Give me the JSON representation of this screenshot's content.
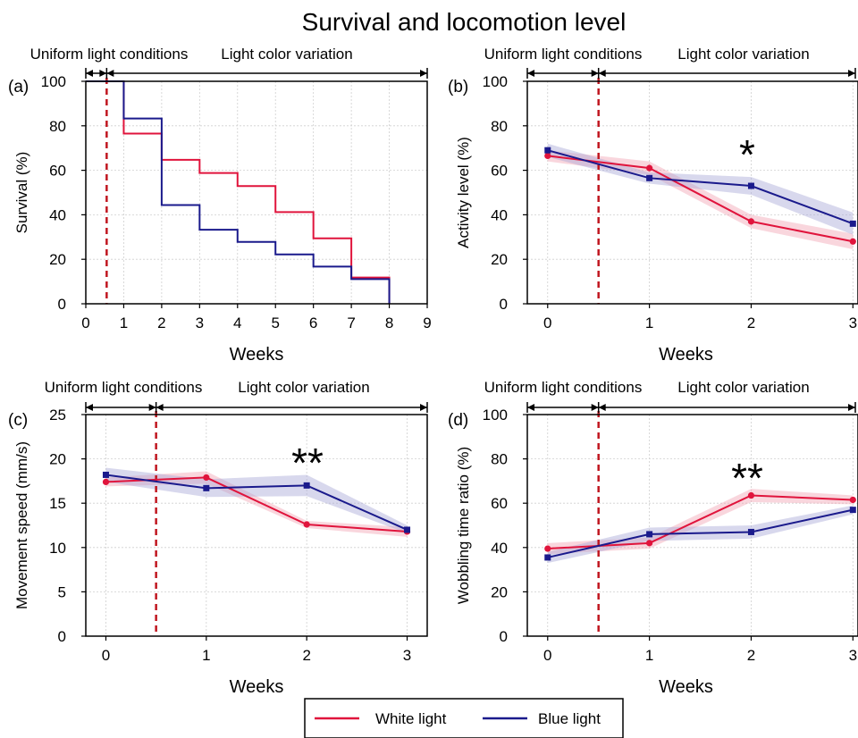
{
  "title": "Survival and locomotion level",
  "colors": {
    "white_light": "#e0143c",
    "blue_light": "#1a1a8c",
    "event_line": "#c0161f",
    "band_white": "#f2a4b4",
    "band_blue": "#a9a9d8"
  },
  "legend": {
    "items": [
      {
        "label": "White light",
        "color": "#e0143c"
      },
      {
        "label": "Blue light",
        "color": "#1a1a8c"
      }
    ],
    "position": "bottom-center"
  },
  "chart_data": [
    {
      "id": "a",
      "panel_label": "(a)",
      "type": "line",
      "step": true,
      "period_labels": {
        "before": "Uniform light conditions",
        "after": "Light color variation"
      },
      "event_x": 0.55,
      "xlabel": "Weeks",
      "ylabel": "Survival (%)",
      "xlim": [
        0,
        9
      ],
      "ylim": [
        0,
        100
      ],
      "xticks": [
        0,
        1,
        2,
        3,
        4,
        5,
        6,
        7,
        8,
        9
      ],
      "yticks": [
        0,
        20,
        40,
        60,
        80,
        100
      ],
      "grid": true,
      "series": [
        {
          "name": "White light",
          "x": [
            0,
            1,
            2,
            3,
            4,
            5,
            6,
            7,
            8
          ],
          "values": [
            100,
            76.5,
            64.7,
            58.8,
            52.9,
            41.2,
            29.4,
            11.8,
            0
          ]
        },
        {
          "name": "Blue light",
          "x": [
            0,
            1,
            2,
            3,
            4,
            5,
            6,
            7,
            8
          ],
          "values": [
            100,
            83.3,
            44.4,
            33.3,
            27.8,
            22.2,
            16.7,
            11.1,
            0
          ]
        }
      ],
      "annotation": ""
    },
    {
      "id": "b",
      "panel_label": "(b)",
      "type": "line",
      "step": false,
      "period_labels": {
        "before": "Uniform light conditions",
        "after": "Light color variation"
      },
      "event_x": 0.5,
      "xlabel": "Weeks",
      "ylabel": "Activity level (%)",
      "xlim": [
        -0.2,
        3.05
      ],
      "ylim": [
        0,
        100
      ],
      "xticks": [
        0,
        1,
        2,
        3
      ],
      "yticks": [
        0,
        20,
        40,
        60,
        80,
        100
      ],
      "grid": true,
      "series": [
        {
          "name": "White light",
          "x": [
            0,
            1,
            2,
            3
          ],
          "values": [
            66.5,
            61,
            37,
            28
          ],
          "lower": [
            64,
            58,
            34,
            24.5
          ],
          "upper": [
            69,
            64,
            40,
            31.5
          ]
        },
        {
          "name": "Blue light",
          "x": [
            0,
            1,
            2,
            3
          ],
          "values": [
            69,
            56.5,
            53,
            36
          ],
          "lower": [
            66,
            54,
            49,
            31
          ],
          "upper": [
            72,
            59,
            57,
            41
          ]
        }
      ],
      "annotation": "*"
    },
    {
      "id": "c",
      "panel_label": "(c)",
      "type": "line",
      "step": false,
      "period_labels": {
        "before": "Uniform light conditions",
        "after": "Light color variation"
      },
      "event_x": 0.5,
      "xlabel": "Weeks",
      "ylabel": "Movement speed (mm/s)",
      "xlim": [
        -0.2,
        3.2
      ],
      "ylim": [
        0,
        25
      ],
      "xticks": [
        0,
        1,
        2,
        3
      ],
      "yticks": [
        0,
        5,
        10,
        15,
        20,
        25
      ],
      "grid": true,
      "series": [
        {
          "name": "White light",
          "x": [
            0,
            1,
            2,
            3
          ],
          "values": [
            17.4,
            17.9,
            12.6,
            11.8
          ],
          "lower": [
            16.9,
            17.2,
            12.2,
            11.2
          ],
          "upper": [
            17.9,
            18.6,
            13.0,
            12.3
          ]
        },
        {
          "name": "Blue light",
          "x": [
            0,
            1,
            2,
            3
          ],
          "values": [
            18.2,
            16.7,
            17.0,
            12.0
          ],
          "lower": [
            17.4,
            15.7,
            15.8,
            11.6
          ],
          "upper": [
            19.0,
            17.7,
            18.2,
            12.5
          ]
        }
      ],
      "annotation": "**"
    },
    {
      "id": "d",
      "panel_label": "(d)",
      "type": "line",
      "step": false,
      "period_labels": {
        "before": "Uniform light conditions",
        "after": "Light color variation"
      },
      "event_x": 0.5,
      "xlabel": "Weeks",
      "ylabel": "Wobbling time ratio (%)",
      "xlim": [
        -0.2,
        3.05
      ],
      "ylim": [
        0,
        100
      ],
      "xticks": [
        0,
        1,
        2,
        3
      ],
      "yticks": [
        0,
        20,
        40,
        60,
        80,
        100
      ],
      "grid": true,
      "series": [
        {
          "name": "White light",
          "x": [
            0,
            1,
            2,
            3
          ],
          "values": [
            39.5,
            42,
            63.5,
            61.5
          ],
          "lower": [
            37,
            39.5,
            60.5,
            59.5
          ],
          "upper": [
            42,
            44.5,
            66.5,
            63.5
          ]
        },
        {
          "name": "Blue light",
          "x": [
            0,
            1,
            2,
            3
          ],
          "values": [
            35.5,
            46,
            47,
            57
          ],
          "lower": [
            33,
            43,
            44,
            55
          ],
          "upper": [
            38,
            49,
            50,
            59
          ]
        }
      ],
      "annotation": "**"
    }
  ]
}
